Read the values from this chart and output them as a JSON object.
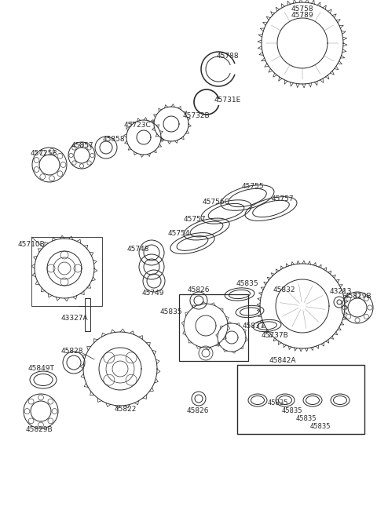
{
  "bg_color": "#ffffff",
  "line_color": "#2a2a2a",
  "figw": 4.8,
  "figh": 6.55,
  "dpi": 100,
  "xlim": [
    0,
    480
  ],
  "ylim": [
    0,
    655
  ]
}
